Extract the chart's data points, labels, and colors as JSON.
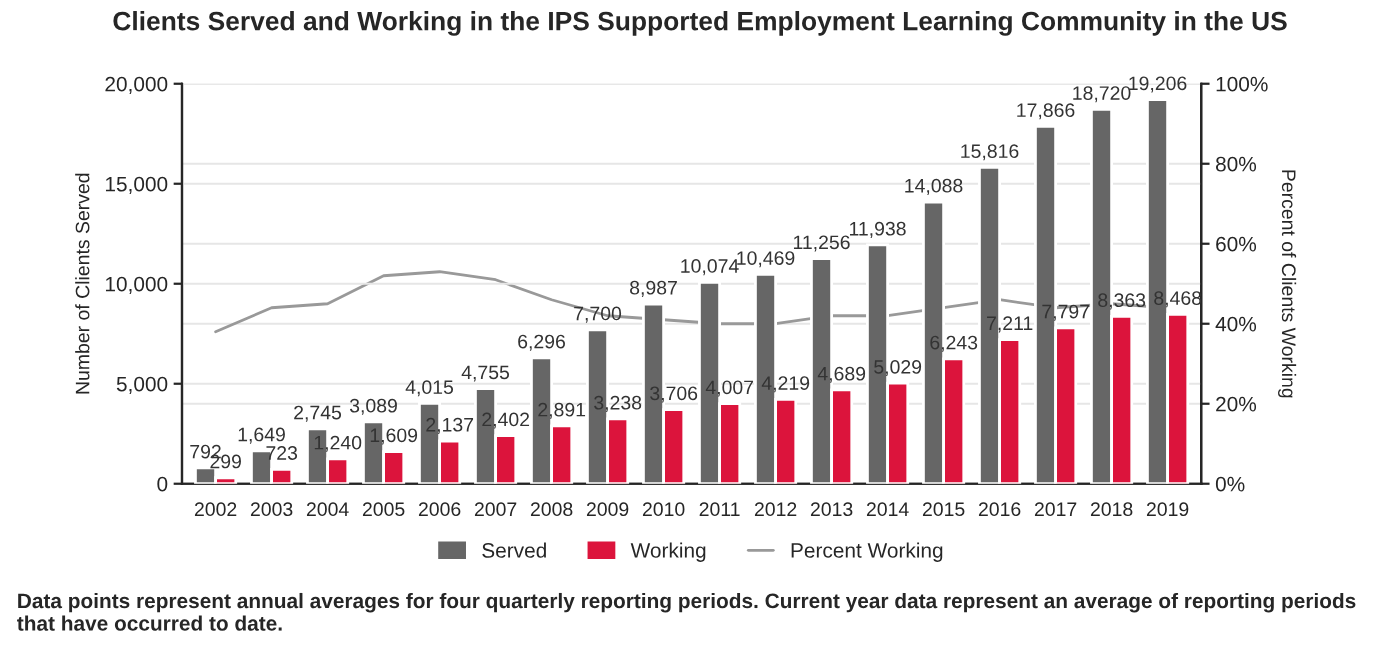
{
  "chart_data": {
    "type": "bar",
    "title": "Clients Served and Working in the IPS Supported Employment Learning Community in the US",
    "categories": [
      "2002",
      "2003",
      "2004",
      "2005",
      "2006",
      "2007",
      "2008",
      "2009",
      "2010",
      "2011",
      "2012",
      "2013",
      "2014",
      "2015",
      "2016",
      "2017",
      "2018",
      "2019"
    ],
    "series": [
      {
        "name": "Served",
        "color": "#666666",
        "values": [
          792,
          1649,
          2745,
          3089,
          4015,
          4755,
          6296,
          7700,
          8987,
          10074,
          10469,
          11256,
          11938,
          14088,
          15816,
          17866,
          18720,
          19206
        ],
        "value_labels": [
          "792",
          "1,649",
          "2,745",
          "3,089",
          "4,015",
          "4,755",
          "6,296",
          "7,700",
          "8,987",
          "10,074",
          "10,469",
          "11,256",
          "11,938",
          "14,088",
          "15,816",
          "17,866",
          "18,720",
          "19,206"
        ]
      },
      {
        "name": "Working",
        "color": "#dc143c",
        "values": [
          299,
          723,
          1240,
          1609,
          2137,
          2402,
          2891,
          3238,
          3706,
          4007,
          4219,
          4689,
          5029,
          6243,
          7211,
          7797,
          8363,
          8468
        ],
        "value_labels": [
          "299",
          "723",
          "1,240",
          "1,609",
          "2,137",
          "2,402",
          "2,891",
          "3,238",
          "3,706",
          "4,007",
          "4,219",
          "4,689",
          "5,029",
          "6,243",
          "7,211",
          "7,797",
          "8,363",
          "8,468"
        ]
      },
      {
        "name": "Percent Working",
        "type": "line",
        "axis": "y2",
        "color": "#999999",
        "values": [
          38,
          44,
          45,
          52,
          53,
          51,
          46,
          42,
          41,
          40,
          40,
          42,
          42,
          44,
          46,
          44,
          45,
          44
        ]
      }
    ],
    "ylabel": "Number of Clients Served",
    "y2label": "Percent of Clients Working",
    "ylim": [
      0,
      20000
    ],
    "yticks": [
      {
        "value": 0,
        "label": "0"
      },
      {
        "value": 5000,
        "label": "5,000"
      },
      {
        "value": 10000,
        "label": "10,000"
      },
      {
        "value": 15000,
        "label": "15,000"
      },
      {
        "value": 20000,
        "label": "20,000"
      }
    ],
    "y2lim": [
      0,
      100
    ],
    "y2ticks": [
      {
        "value": 0,
        "label": "0%"
      },
      {
        "value": 20,
        "label": "20%"
      },
      {
        "value": 40,
        "label": "40%"
      },
      {
        "value": 60,
        "label": "60%"
      },
      {
        "value": 80,
        "label": "80%"
      },
      {
        "value": 100,
        "label": "100%"
      }
    ],
    "grid": "y",
    "legend": "bottom",
    "annotations": [
      "Data points represent annual averages for four quarterly reporting periods. Current year data represent an average of reporting periods that have occurred to date."
    ]
  }
}
